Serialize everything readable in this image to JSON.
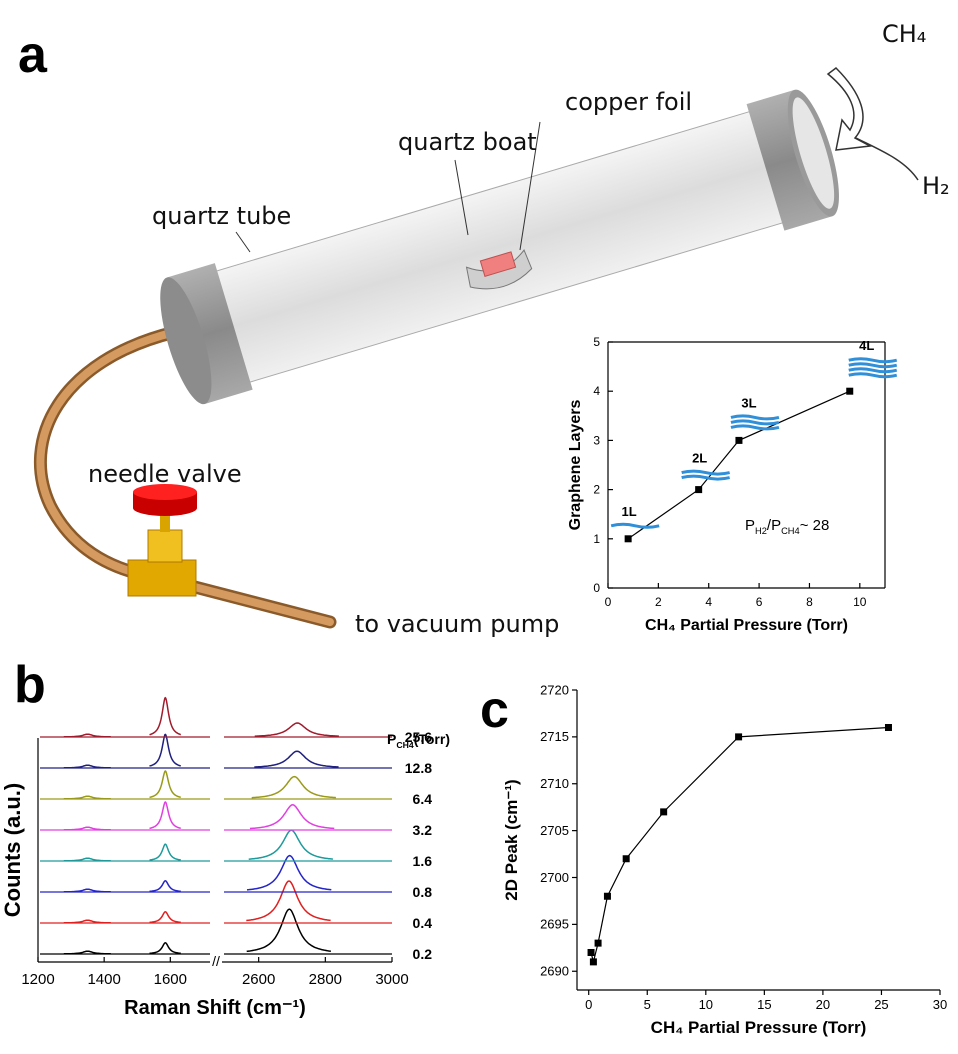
{
  "panel_labels": [
    "a",
    "b",
    "c"
  ],
  "diagram": {
    "gas_in_1": "CH₄",
    "gas_in_2": "H₂",
    "copper_foil": "copper foil",
    "quartz_boat": "quartz boat",
    "quartz_tube": "quartz tube",
    "needle_valve": "needle valve",
    "outlet": "to vacuum pump"
  },
  "chart_data": [
    {
      "type": "line",
      "xlabel": "CH₄ Partial Pressure (Torr)",
      "ylabel": "Graphene Layers",
      "x": [
        0.8,
        3.6,
        5.2,
        9.6
      ],
      "values": [
        1,
        2,
        3,
        4
      ],
      "color": "#000000",
      "xlim": [
        0,
        11
      ],
      "ylim": [
        0,
        5
      ],
      "xticks": [
        0,
        2,
        4,
        6,
        8,
        10
      ],
      "yticks": [
        0,
        1,
        2,
        3,
        4,
        5
      ],
      "point_labels": [
        "1L",
        "2L",
        "3L",
        "4L"
      ],
      "annotation": [
        "P",
        "H2",
        "/P",
        "CH4",
        "~ 28"
      ]
    },
    {
      "type": "spectra",
      "xlabel": "Raman Shift (cm⁻¹)",
      "ylabel": "Counts (a.u.)",
      "legend_title": [
        "P",
        "CH4",
        "(Torr)"
      ],
      "xlim_segments": [
        [
          1200,
          1720
        ],
        [
          2490,
          3000
        ]
      ],
      "xticks": [
        1200,
        1400,
        1600,
        2600,
        2800,
        3000
      ],
      "series": [
        {
          "name": "0.2",
          "color": "#000000",
          "x": [
            1350,
            1585,
            2692
          ],
          "values": [
            0.1,
            0.4,
            1.6
          ]
        },
        {
          "name": "0.4",
          "color": "#e02020",
          "x": [
            1350,
            1585,
            2691
          ],
          "values": [
            0.1,
            0.4,
            1.5
          ]
        },
        {
          "name": "0.8",
          "color": "#2424c8",
          "x": [
            1350,
            1585,
            2693
          ],
          "values": [
            0.1,
            0.4,
            1.3
          ]
        },
        {
          "name": "1.6",
          "color": "#1f9a9a",
          "x": [
            1350,
            1585,
            2698
          ],
          "values": [
            0.1,
            0.6,
            1.1
          ]
        },
        {
          "name": "3.2",
          "color": "#e040e0",
          "x": [
            1350,
            1585,
            2702
          ],
          "values": [
            0.1,
            1.0,
            0.9
          ]
        },
        {
          "name": "6.4",
          "color": "#9a9a1a",
          "x": [
            1350,
            1585,
            2707
          ],
          "values": [
            0.1,
            1.0,
            0.8
          ]
        },
        {
          "name": "12.8",
          "color": "#202080",
          "x": [
            1350,
            1585,
            2715
          ],
          "values": [
            0.1,
            1.2,
            0.6
          ]
        },
        {
          "name": "25.6",
          "color": "#a01c2c",
          "x": [
            1350,
            1585,
            2716
          ],
          "values": [
            0.1,
            1.4,
            0.5
          ]
        }
      ]
    },
    {
      "type": "line",
      "xlabel": "CH₄ Partial Pressure (Torr)",
      "ylabel": "2D Peak (cm⁻¹)",
      "x": [
        0.2,
        0.4,
        0.8,
        1.6,
        3.2,
        6.4,
        12.8,
        25.6
      ],
      "values": [
        2692,
        2691,
        2693,
        2698,
        2702,
        2707,
        2715,
        2716
      ],
      "color": "#000000",
      "xlim": [
        -1,
        30
      ],
      "ylim": [
        2688,
        2720
      ],
      "xticks": [
        0,
        5,
        10,
        15,
        20,
        25,
        30
      ],
      "yticks": [
        2690,
        2695,
        2700,
        2705,
        2710,
        2715,
        2720
      ]
    }
  ]
}
